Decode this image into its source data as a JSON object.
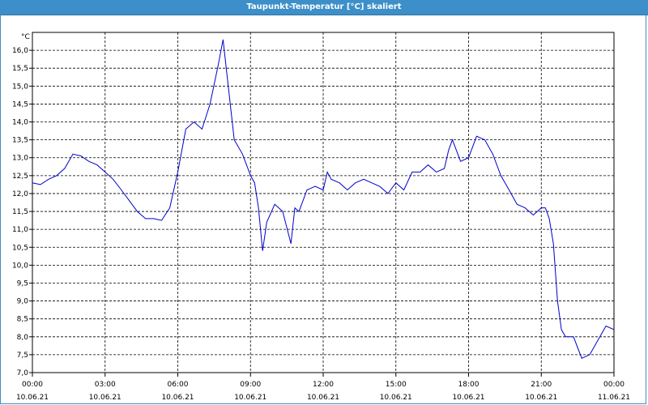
{
  "window": {
    "title": "Taupunkt-Temperatur [°C] skaliert"
  },
  "chart_data": {
    "type": "line",
    "title": "Taupunkt-Temperatur [°C] skaliert",
    "unit_label": "°C",
    "xlabel": "",
    "ylabel": "°C",
    "grid": true,
    "line_color": "#0000cc",
    "xlim": [
      0,
      24
    ],
    "ylim": [
      7.0,
      16.5
    ],
    "y_ticks": [
      "7,0",
      "7,5",
      "8,0",
      "8,5",
      "9,0",
      "9,5",
      "10,0",
      "10,5",
      "11,0",
      "11,5",
      "12,0",
      "12,5",
      "13,0",
      "13,5",
      "14,0",
      "14,5",
      "15,0",
      "15,5",
      "16,0"
    ],
    "x_ticks": [
      {
        "time": "00:00",
        "date": "10.06.21"
      },
      {
        "time": "03:00",
        "date": "10.06.21"
      },
      {
        "time": "06:00",
        "date": "10.06.21"
      },
      {
        "time": "09:00",
        "date": "10.06.21"
      },
      {
        "time": "12:00",
        "date": "10.06.21"
      },
      {
        "time": "15:00",
        "date": "10.06.21"
      },
      {
        "time": "18:00",
        "date": "10.06.21"
      },
      {
        "time": "21:00",
        "date": "10.06.21"
      },
      {
        "time": "00:00",
        "date": "11.06.21"
      }
    ],
    "series": [
      {
        "x": [
          0.0,
          0.33,
          0.67,
          1.0,
          1.33,
          1.67,
          2.0,
          2.33,
          2.67,
          3.0,
          3.33,
          3.67,
          4.0,
          4.33,
          4.67,
          5.0,
          5.33,
          5.67,
          6.0,
          6.33,
          6.67,
          7.0,
          7.33,
          7.67,
          7.87,
          8.0,
          8.33,
          8.67,
          9.0,
          9.17,
          9.33,
          9.5,
          9.67,
          10.0,
          10.33,
          10.67,
          10.83,
          11.0,
          11.33,
          11.67,
          12.0,
          12.17,
          12.33,
          12.67,
          13.0,
          13.33,
          13.67,
          14.0,
          14.33,
          14.67,
          15.0,
          15.33,
          15.67,
          16.0,
          16.33,
          16.67,
          17.0,
          17.17,
          17.33,
          17.67,
          18.0,
          18.33,
          18.67,
          19.0,
          19.33,
          19.67,
          20.0,
          20.33,
          20.67,
          21.0,
          21.17,
          21.33,
          21.5,
          21.67,
          21.83,
          22.0,
          22.33,
          22.67,
          23.0,
          23.33,
          23.67,
          24.0
        ],
        "y": [
          12.3,
          12.25,
          12.4,
          12.5,
          12.7,
          13.1,
          13.05,
          12.9,
          12.8,
          12.6,
          12.4,
          12.1,
          11.8,
          11.5,
          11.3,
          11.3,
          11.25,
          11.6,
          12.6,
          13.8,
          14.0,
          13.8,
          14.5,
          15.6,
          16.3,
          15.5,
          13.5,
          13.1,
          12.5,
          12.3,
          11.6,
          10.4,
          11.2,
          11.7,
          11.5,
          10.6,
          11.6,
          11.5,
          12.1,
          12.2,
          12.1,
          12.6,
          12.4,
          12.3,
          12.1,
          12.3,
          12.4,
          12.3,
          12.2,
          12.0,
          12.3,
          12.1,
          12.6,
          12.6,
          12.8,
          12.6,
          12.7,
          13.2,
          13.5,
          12.9,
          13.0,
          13.6,
          13.5,
          13.1,
          12.5,
          12.1,
          11.7,
          11.6,
          11.4,
          11.6,
          11.6,
          11.3,
          10.6,
          9.0,
          8.2,
          8.0,
          8.0,
          7.4,
          7.5,
          7.9,
          8.3,
          8.2
        ]
      }
    ]
  }
}
